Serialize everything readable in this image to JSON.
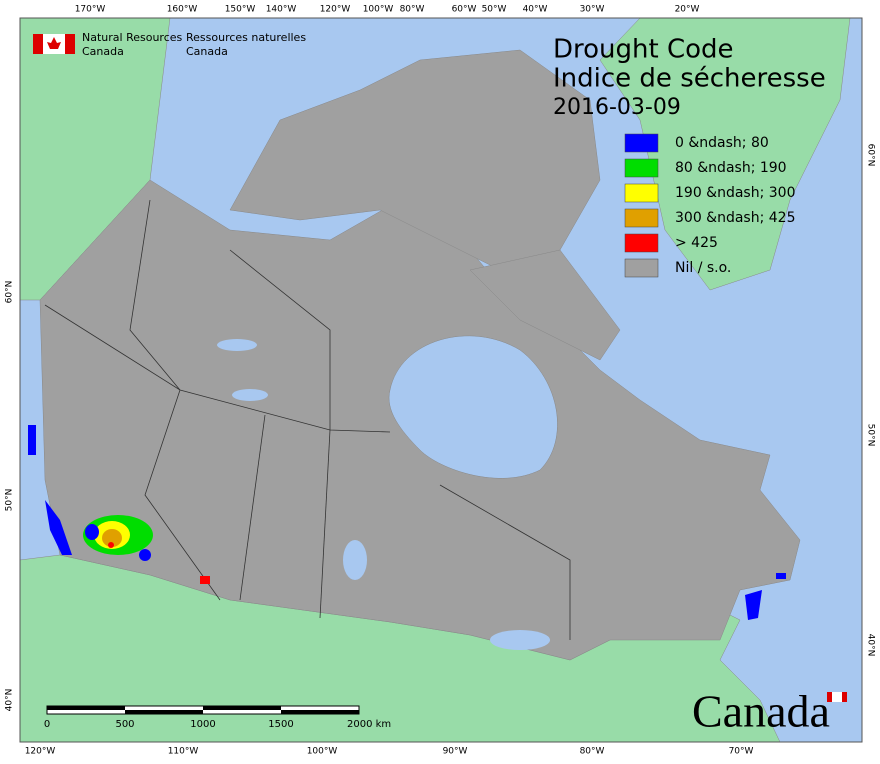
{
  "header": {
    "agency_en": [
      "Natural Resources",
      "Canada"
    ],
    "agency_fr": [
      "Ressources naturelles",
      "Canada"
    ]
  },
  "title": {
    "line1": "Drought Code",
    "line2": "Indice de sécheresse",
    "date": "2016-03-09"
  },
  "legend": [
    {
      "label": "0 &ndash; 80",
      "color": "#0000ff"
    },
    {
      "label": "80 &ndash; 190",
      "color": "#00dd00"
    },
    {
      "label": "190 &ndash; 300",
      "color": "#ffff00"
    },
    {
      "label": "300 &ndash; 425",
      "color": "#e0a000"
    },
    {
      "label": "> 425",
      "color": "#ff0000"
    },
    {
      "label": "Nil / s.o.",
      "color": "#a0a0a0"
    }
  ],
  "graticule": {
    "top": [
      "170°W",
      "160°W",
      "150°W",
      "140°W",
      "120°W",
      "100°W",
      "80°W",
      "60°W",
      "50°W",
      "40°W",
      "30°W",
      "20°W"
    ],
    "bottom": [
      "120°W",
      "110°W",
      "100°W",
      "90°W",
      "80°W",
      "70°W"
    ],
    "left": [
      "60°N",
      "50°N",
      "40°N"
    ],
    "right": [
      "60°N",
      "50°N",
      "40°N"
    ]
  },
  "scale": {
    "labels": [
      "0",
      "500",
      "1000",
      "1500",
      "2000 km"
    ]
  },
  "wordmark": "Canada"
}
